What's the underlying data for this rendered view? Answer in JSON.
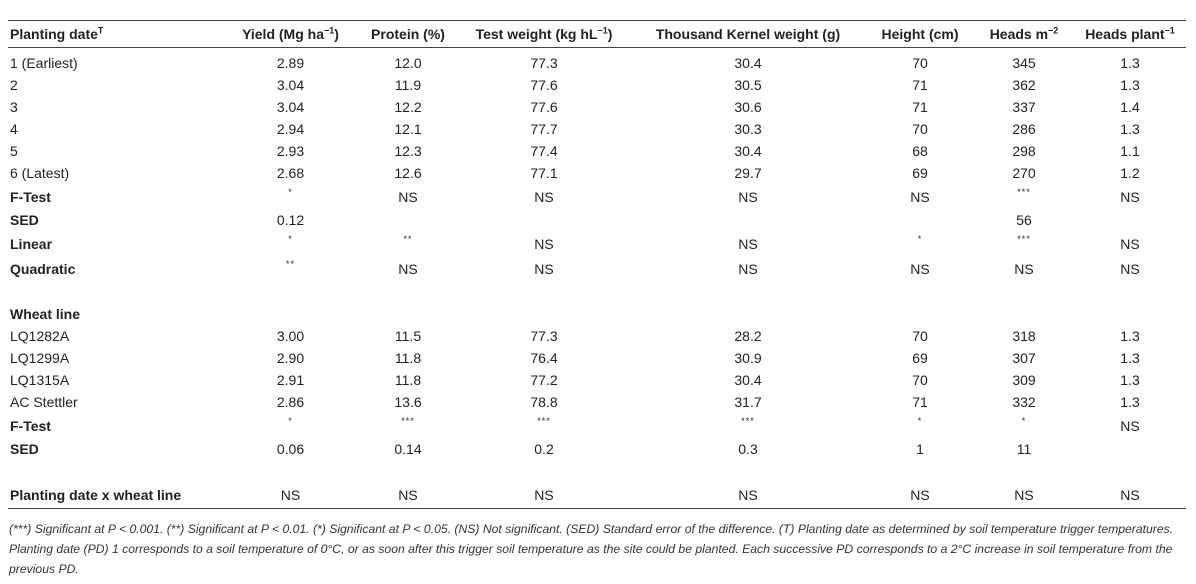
{
  "table": {
    "headers": [
      {
        "text": "Planting date",
        "sup": "T"
      },
      {
        "text": "Yield (Mg ha",
        "sup": "−1",
        "tail": ")"
      },
      {
        "text": "Protein (%)",
        "sup": "",
        "tail": ""
      },
      {
        "text": "Test weight (kg hL",
        "sup": "−1",
        "tail": ")"
      },
      {
        "text": "Thousand Kernel weight (g)",
        "sup": "",
        "tail": ""
      },
      {
        "text": "Height (cm)",
        "sup": "",
        "tail": ""
      },
      {
        "text": "Heads m",
        "sup": "−2",
        "tail": ""
      },
      {
        "text": "Heads plant",
        "sup": "−1",
        "tail": ""
      }
    ],
    "rows": [
      {
        "kind": "data",
        "cells": [
          "1 (Earliest)",
          "2.89",
          "12.0",
          "77.3",
          "30.4",
          "70",
          "345",
          "1.3"
        ]
      },
      {
        "kind": "data",
        "cells": [
          "2",
          "3.04",
          "11.9",
          "77.6",
          "30.5",
          "71",
          "362",
          "1.3"
        ]
      },
      {
        "kind": "data",
        "cells": [
          "3",
          "3.04",
          "12.2",
          "77.6",
          "30.6",
          "71",
          "337",
          "1.4"
        ]
      },
      {
        "kind": "data",
        "cells": [
          "4",
          "2.94",
          "12.1",
          "77.7",
          "30.3",
          "70",
          "286",
          "1.3"
        ]
      },
      {
        "kind": "data",
        "cells": [
          "5",
          "2.93",
          "12.3",
          "77.4",
          "30.4",
          "68",
          "298",
          "1.1"
        ]
      },
      {
        "kind": "data",
        "cells": [
          "6 (Latest)",
          "2.68",
          "12.6",
          "77.1",
          "29.7",
          "69",
          "270",
          "1.2"
        ]
      },
      {
        "kind": "stat",
        "cells": [
          "F-Test",
          "*",
          "NS",
          "NS",
          "NS",
          "NS",
          "***",
          "NS"
        ]
      },
      {
        "kind": "stat",
        "cells": [
          "SED",
          "0.12",
          "",
          "",
          "",
          "",
          "56",
          ""
        ]
      },
      {
        "kind": "stat",
        "cells": [
          "Linear",
          "*",
          "**",
          "NS",
          "NS",
          "*",
          "***",
          "NS"
        ]
      },
      {
        "kind": "stat",
        "cells": [
          "Quadratic",
          "**",
          "NS",
          "NS",
          "NS",
          "NS",
          "NS",
          "NS"
        ]
      },
      {
        "kind": "blank",
        "cells": [
          "",
          "",
          "",
          "",
          "",
          "",
          "",
          ""
        ]
      },
      {
        "kind": "stat",
        "cells": [
          "Wheat line",
          "",
          "",
          "",
          "",
          "",
          "",
          ""
        ]
      },
      {
        "kind": "data",
        "cells": [
          "LQ1282A",
          "3.00",
          "11.5",
          "77.3",
          "28.2",
          "70",
          "318",
          "1.3"
        ]
      },
      {
        "kind": "data",
        "cells": [
          "LQ1299A",
          "2.90",
          "11.8",
          "76.4",
          "30.9",
          "69",
          "307",
          "1.3"
        ]
      },
      {
        "kind": "data",
        "cells": [
          "LQ1315A",
          "2.91",
          "11.8",
          "77.2",
          "30.4",
          "70",
          "309",
          "1.3"
        ]
      },
      {
        "kind": "data",
        "cells": [
          "AC Stettler",
          "2.86",
          "13.6",
          "78.8",
          "31.7",
          "71",
          "332",
          "1.3"
        ]
      },
      {
        "kind": "stat",
        "cells": [
          "F-Test",
          "*",
          "***",
          "***",
          "***",
          "*",
          "*",
          "NS"
        ]
      },
      {
        "kind": "stat",
        "cells": [
          "SED",
          "0.06",
          "0.14",
          "0.2",
          "0.3",
          "1",
          "11",
          ""
        ]
      },
      {
        "kind": "blank",
        "cells": [
          "",
          "",
          "",
          "",
          "",
          "",
          "",
          ""
        ]
      },
      {
        "kind": "last",
        "cells": [
          "Planting date x wheat line",
          "NS",
          "NS",
          "NS",
          "NS",
          "NS",
          "NS",
          "NS"
        ]
      }
    ]
  },
  "footnote": "(***) Significant at P < 0.001. (**) Significant at P < 0.01. (*) Significant at P < 0.05. (NS) Not significant. (SED) Standard error of the difference. (T) Planting date as determined by soil temperature trigger temperatures. Planting date (PD) 1 corresponds to a soil temperature of 0°C, or as soon after this trigger soil temperature as the site could be planted. Each successive PD corresponds to a 2°C increase in soil temperature from the previous PD."
}
